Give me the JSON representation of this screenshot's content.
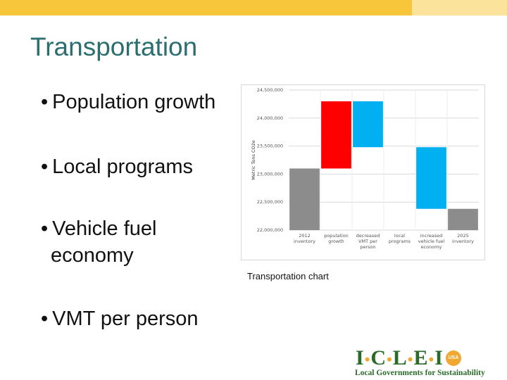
{
  "slide": {
    "title": "Transportation",
    "bullets": [
      {
        "dot": "•",
        "lines": [
          "Population growth"
        ]
      },
      {
        "dot": "•",
        "lines": [
          "Local programs"
        ]
      },
      {
        "dot": "•",
        "lines": [
          "Vehicle fuel",
          "economy"
        ]
      },
      {
        "dot": "•",
        "lines": [
          "VMT per person"
        ]
      }
    ],
    "caption": "Transportation chart"
  },
  "logo": {
    "main_letters": [
      "I",
      "C",
      "L",
      "E",
      "I"
    ],
    "badge": "USA",
    "subtitle": "Local Governments for Sustainability"
  },
  "chart_data": {
    "type": "bar",
    "subtype": "waterfall",
    "ylabel": "Metric Tons CO2e",
    "ylim": [
      22000000,
      24500000
    ],
    "yticks": [
      22000000,
      22500000,
      23000000,
      23500000,
      24000000,
      24500000
    ],
    "ytick_labels": [
      "22,000,000",
      "22,500,000",
      "23,000,000",
      "23,500,000",
      "24,000,000",
      "24,500,000"
    ],
    "grid": true,
    "categories": [
      [
        "2012",
        "inventory"
      ],
      [
        "population",
        "growth"
      ],
      [
        "decreased",
        "VMT per",
        "person"
      ],
      [
        "local",
        "programs"
      ],
      [
        "increased",
        "vehicle fuel",
        "economy"
      ],
      [
        "2025",
        "inventory"
      ]
    ],
    "bars": [
      {
        "start": 22000000,
        "end": 23100000,
        "color": "#8c8c8c"
      },
      {
        "start": 23100000,
        "end": 24300000,
        "color": "#ff0000"
      },
      {
        "start": 24300000,
        "end": 23480000,
        "color": "#00b0f0"
      },
      {
        "start": 23480000,
        "end": 23480000,
        "color": "#00b0f0"
      },
      {
        "start": 23480000,
        "end": 22380000,
        "color": "#00b0f0"
      },
      {
        "start": 22000000,
        "end": 22380000,
        "color": "#8c8c8c"
      }
    ]
  }
}
